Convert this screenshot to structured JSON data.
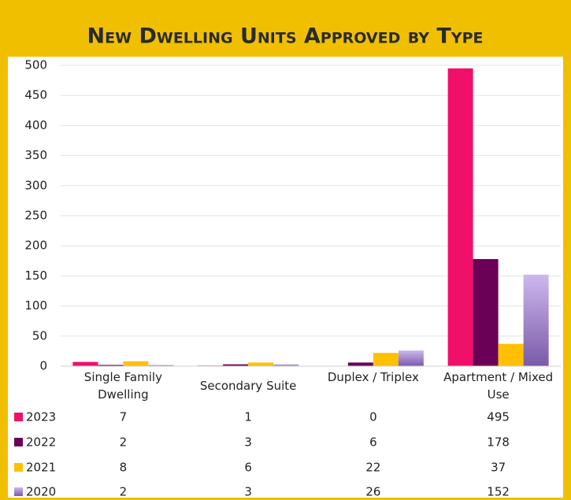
{
  "chart_data": {
    "type": "bar",
    "title": "New Dwelling Units Approved by Type",
    "categories": [
      "Single Family Dwelling",
      "Secondary Suite",
      "Duplex / Triplex",
      "Apartment / Mixed Use"
    ],
    "series": [
      {
        "name": "2023",
        "color": "#f0106a",
        "values": [
          7,
          1,
          0,
          495
        ]
      },
      {
        "name": "2022",
        "color": "#6b0057",
        "values": [
          2,
          3,
          6,
          178
        ]
      },
      {
        "name": "2021",
        "color": "#ffc000",
        "values": [
          8,
          6,
          22,
          37
        ]
      },
      {
        "name": "2020",
        "color": "#a58bd0",
        "values": [
          2,
          3,
          26,
          152
        ]
      }
    ],
    "ylim": [
      0,
      500
    ],
    "yticks": [
      0,
      50,
      100,
      150,
      200,
      250,
      300,
      350,
      400,
      450,
      500
    ],
    "grid": true
  }
}
